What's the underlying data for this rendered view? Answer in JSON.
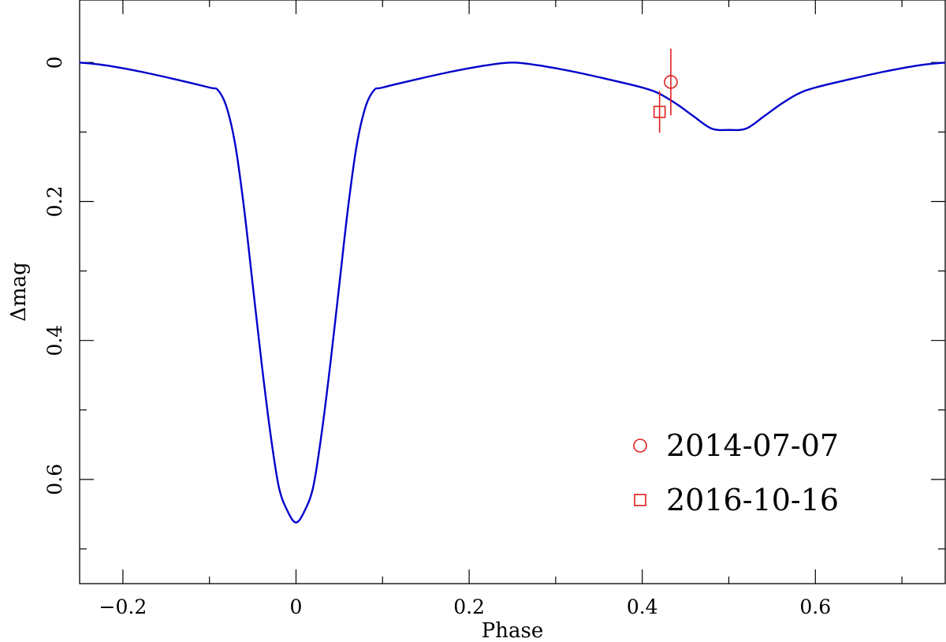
{
  "chart_data": {
    "type": "line",
    "xlabel": "Phase",
    "ylabel": "Δmag",
    "xlim": [
      -0.25,
      0.75
    ],
    "ylim": [
      0.75,
      -0.09
    ],
    "y_inverted": true,
    "x_major_ticks": [
      -0.2,
      0,
      0.2,
      0.4,
      0.6
    ],
    "x_tick_labels": [
      "−0.2",
      "0",
      "0.2",
      "0.4",
      "0.6"
    ],
    "x_minor_ticks": [
      -0.1,
      0.1,
      0.3,
      0.5,
      0.7
    ],
    "y_major_ticks": [
      0,
      0.2,
      0.4,
      0.6
    ],
    "y_tick_labels": [
      "0",
      "0.2",
      "0.4",
      "0.6"
    ],
    "y_minor_ticks": [
      0.1,
      0.3,
      0.5,
      0.7
    ],
    "grid": false,
    "legend_position": "bottom-right",
    "model_curve": {
      "color": "#0000cc",
      "x": [
        -0.25,
        -0.22,
        -0.18,
        -0.14,
        -0.1,
        -0.09,
        -0.08,
        -0.07,
        -0.06,
        -0.05,
        -0.04,
        -0.03,
        -0.02,
        -0.01,
        0,
        0.01,
        0.02,
        0.03,
        0.04,
        0.05,
        0.06,
        0.07,
        0.08,
        0.09,
        0.1,
        0.14,
        0.18,
        0.22,
        0.25,
        0.28,
        0.32,
        0.36,
        0.4,
        0.42,
        0.44,
        0.46,
        0.48,
        0.5,
        0.52,
        0.54,
        0.56,
        0.58,
        0.6,
        0.64,
        0.68,
        0.72,
        0.75
      ],
      "y": [
        0,
        0.004,
        0.013,
        0.024,
        0.036,
        0.04,
        0.065,
        0.12,
        0.21,
        0.32,
        0.43,
        0.53,
        0.61,
        0.645,
        0.662,
        0.645,
        0.61,
        0.53,
        0.43,
        0.32,
        0.21,
        0.12,
        0.065,
        0.04,
        0.036,
        0.024,
        0.013,
        0.004,
        0,
        0.004,
        0.013,
        0.024,
        0.036,
        0.045,
        0.06,
        0.078,
        0.095,
        0.097,
        0.095,
        0.078,
        0.06,
        0.045,
        0.036,
        0.024,
        0.013,
        0.004,
        0
      ]
    },
    "series": [
      {
        "name": "2014-07-07",
        "marker": "circle",
        "color": "#e02020",
        "x": 0.433,
        "y": 0.028,
        "yerr": 0.048
      },
      {
        "name": "2016-10-16",
        "marker": "square",
        "color": "#e02020",
        "x": 0.42,
        "y": 0.071,
        "yerr": 0.03
      }
    ]
  }
}
